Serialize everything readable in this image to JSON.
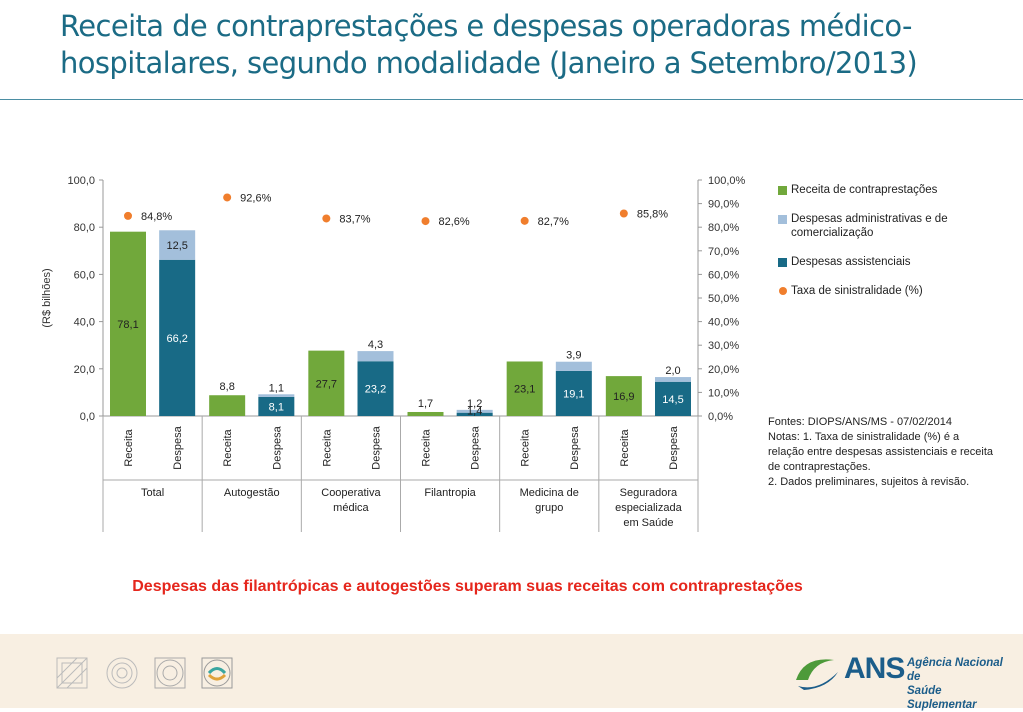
{
  "page": {
    "title": "Receita de contraprestações e despesas operadoras médico-hospitalares, segundo modalidade (Janeiro a Setembro/2013)",
    "highlight": "Despesas das filantrópicas e autogestões superam suas receitas com contraprestações",
    "notes": [
      "Fontes: DIOPS/ANS/MS - 07/02/2014",
      "Notas:  1. Taxa de sinistralidade (%) é a relação entre despesas assistenciais e receita de contraprestações.",
      "2. Dados preliminares, sujeitos à revisão."
    ],
    "logo": {
      "mark": "ANS",
      "line1": "Agência Nacional de",
      "line2": "Saúde Suplementar"
    }
  },
  "chart_data": {
    "type": "bar",
    "ylabel": "(R$ bilhões)",
    "ylim": [
      0,
      100
    ],
    "yticks": [
      "0,0",
      "20,0",
      "40,0",
      "60,0",
      "80,0",
      "100,0"
    ],
    "y2lim": [
      0,
      100
    ],
    "y2ticks": [
      "0,0%",
      "10,0%",
      "20,0%",
      "30,0%",
      "40,0%",
      "50,0%",
      "60,0%",
      "70,0%",
      "80,0%",
      "90,0%",
      "100,0%"
    ],
    "groups": [
      {
        "name": "Total",
        "receita": 78.1,
        "assistenciais": 66.2,
        "administrativas": 12.5,
        "sinistralidade": 84.8,
        "labels": {
          "receita": "78,1",
          "assistenciais": "66,2",
          "administrativas": "12,5",
          "sinistralidade": "84,8%"
        }
      },
      {
        "name": "Autogestão",
        "receita": 8.8,
        "assistenciais": 8.1,
        "administrativas": 1.1,
        "sinistralidade": 92.6,
        "labels": {
          "receita": "8,8",
          "assistenciais": "8,1",
          "administrativas": "1,1",
          "sinistralidade": "92,6%"
        }
      },
      {
        "name": "Cooperativa médica",
        "receita": 27.7,
        "assistenciais": 23.2,
        "administrativas": 4.3,
        "sinistralidade": 83.7,
        "labels": {
          "receita": "27,7",
          "assistenciais": "23,2",
          "administrativas": "4,3",
          "sinistralidade": "83,7%"
        }
      },
      {
        "name": "Filantropia",
        "receita": 1.7,
        "assistenciais": 1.4,
        "administrativas": 1.2,
        "sinistralidade": 82.6,
        "labels": {
          "receita": "1,7",
          "assistenciais": "1,4",
          "administrativas": "1,2",
          "sinistralidade": "82,6%"
        }
      },
      {
        "name": "Medicina de grupo",
        "receita": 23.1,
        "assistenciais": 19.1,
        "administrativas": 3.9,
        "sinistralidade": 82.7,
        "labels": {
          "receita": "23,1",
          "assistenciais": "19,1",
          "administrativas": "3,9",
          "sinistralidade": "82,7%"
        }
      },
      {
        "name": "Seguradora especializada em Saúde",
        "receita": 16.9,
        "assistenciais": 14.5,
        "administrativas": 2.0,
        "sinistralidade": 85.8,
        "labels": {
          "receita": "16,9",
          "assistenciais": "14,5",
          "administrativas": "2,0",
          "sinistralidade": "85,8%"
        }
      }
    ],
    "bar_labels": {
      "receita": "Receita",
      "despesa": "Despesa"
    },
    "legend": [
      {
        "name": "Receita de contraprestações",
        "color": "#71a83b",
        "kind": "bar"
      },
      {
        "name": "Despesas administrativas e de comercialização",
        "color": "#a3bfdb",
        "kind": "bar"
      },
      {
        "name": "Despesas assistenciais",
        "color": "#186a86",
        "kind": "bar"
      },
      {
        "name": "Taxa de sinistralidade (%)",
        "color": "#f07e2d",
        "kind": "dot"
      }
    ],
    "legend_position": "right"
  }
}
